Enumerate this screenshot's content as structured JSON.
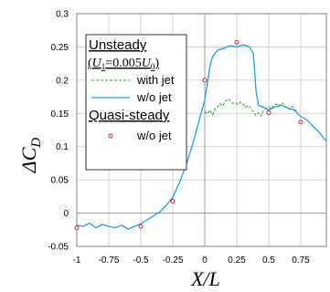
{
  "chart_data": {
    "type": "line",
    "xlabel_main": "X/L",
    "ylabel_main": "ΔC",
    "ylabel_sub": "D",
    "xlim": [
      -1.0,
      0.95
    ],
    "ylim": [
      -0.05,
      0.3
    ],
    "xticks": [
      -1,
      -0.75,
      -0.5,
      -0.25,
      0,
      0.25,
      0.5,
      0.75
    ],
    "xtick_labels": [
      "-1",
      "-0.75",
      "-0.5",
      "-0.25",
      "0",
      "0.25",
      "0.5",
      "0.75"
    ],
    "yticks": [
      -0.05,
      0,
      0.05,
      0.1,
      0.15,
      0.2,
      0.25,
      0.3
    ],
    "ytick_labels": [
      "-0.05",
      "0",
      "0.05",
      "0.1",
      "0.15",
      "0.2",
      "0.25",
      "0.3"
    ],
    "grid": "vertical and horizontal gridlines",
    "legend": {
      "group1_title": "Unsteady",
      "group1_subtitle": "(U1=0.005U0)",
      "group2_title": "Quasi-steady"
    },
    "series": [
      {
        "name": "with jet",
        "style": "dashed",
        "color": "#2ca02c",
        "x": [
          0.0,
          0.02,
          0.04,
          0.06,
          0.08,
          0.1,
          0.12,
          0.14,
          0.16,
          0.18,
          0.2,
          0.22,
          0.24,
          0.26,
          0.28,
          0.3,
          0.32,
          0.34,
          0.36,
          0.38,
          0.4,
          0.42,
          0.44,
          0.46,
          0.48,
          0.5,
          0.52,
          0.54,
          0.56,
          0.58,
          0.6,
          0.62,
          0.64,
          0.66,
          0.68,
          0.7,
          0.72
        ],
        "values": [
          0.153,
          0.149,
          0.155,
          0.148,
          0.157,
          0.16,
          0.165,
          0.161,
          0.168,
          0.172,
          0.169,
          0.165,
          0.166,
          0.163,
          0.167,
          0.164,
          0.159,
          0.162,
          0.158,
          0.152,
          0.147,
          0.151,
          0.146,
          0.155,
          0.158,
          0.16,
          0.157,
          0.162,
          0.164,
          0.161,
          0.166,
          0.162,
          0.159,
          0.156,
          0.161,
          0.157,
          0.152
        ]
      },
      {
        "name": "w/o jet",
        "style": "solid",
        "color": "#1ea0e0",
        "x": [
          -1.0,
          -0.95,
          -0.9,
          -0.85,
          -0.8,
          -0.75,
          -0.7,
          -0.65,
          -0.6,
          -0.55,
          -0.5,
          -0.45,
          -0.4,
          -0.35,
          -0.3,
          -0.25,
          -0.2,
          -0.15,
          -0.1,
          -0.05,
          0.0,
          0.02,
          0.04,
          0.06,
          0.08,
          0.1,
          0.15,
          0.2,
          0.25,
          0.3,
          0.35,
          0.38,
          0.4,
          0.42,
          0.45,
          0.5,
          0.55,
          0.6,
          0.65,
          0.7,
          0.75,
          0.8,
          0.85,
          0.9,
          0.95
        ],
        "values": [
          -0.018,
          -0.02,
          -0.015,
          -0.022,
          -0.017,
          -0.02,
          -0.022,
          -0.018,
          -0.024,
          -0.02,
          -0.016,
          -0.01,
          -0.004,
          0.002,
          0.012,
          0.024,
          0.045,
          0.07,
          0.1,
          0.135,
          0.17,
          0.195,
          0.22,
          0.235,
          0.24,
          0.245,
          0.248,
          0.252,
          0.25,
          0.253,
          0.25,
          0.24,
          0.185,
          0.162,
          0.16,
          0.155,
          0.16,
          0.162,
          0.158,
          0.155,
          0.145,
          0.14,
          0.13,
          0.12,
          0.108
        ]
      },
      {
        "name": "w/o jet",
        "style": "markers",
        "color": "#e0191f",
        "x": [
          -1.0,
          -0.5,
          -0.25,
          0.0,
          0.25,
          0.5,
          0.75
        ],
        "values": [
          -0.022,
          -0.02,
          0.018,
          0.2,
          0.257,
          0.151,
          0.137
        ]
      }
    ]
  }
}
